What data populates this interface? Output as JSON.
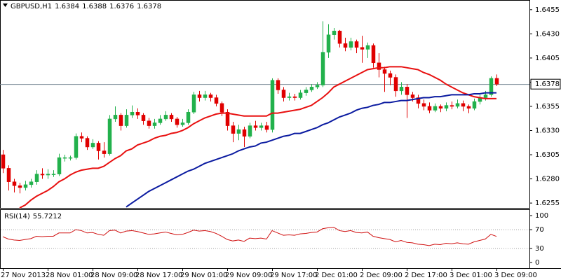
{
  "chart_data": {
    "type": "candlestick",
    "title": "GBPUSD,H1",
    "categories": [
      "27 Nov 2013",
      null,
      null,
      null,
      null,
      null,
      null,
      null,
      "28 Nov 01:00",
      null,
      null,
      null,
      null,
      null,
      null,
      null,
      "28 Nov 09:00",
      null,
      null,
      null,
      null,
      null,
      null,
      null,
      "28 Nov 17:00",
      null,
      null,
      null,
      null,
      null,
      null,
      null,
      "29 Nov 01:00",
      null,
      null,
      null,
      null,
      null,
      null,
      null,
      "29 Nov 09:00",
      null,
      null,
      null,
      null,
      null,
      null,
      null,
      "29 Nov 17:00",
      null,
      null,
      null,
      null,
      null,
      null,
      null,
      "2 Dec 01:00",
      null,
      null,
      null,
      null,
      null,
      null,
      null,
      "2 Dec 09:00",
      null,
      null,
      null,
      null,
      null,
      null,
      null,
      "2 Dec 17:00",
      null,
      null,
      null,
      null,
      null,
      null,
      null,
      "3 Dec 01:00",
      null,
      null,
      null,
      null,
      null,
      null,
      null,
      "3 Dec 09:00"
    ],
    "open": [
      1.6305,
      1.6291,
      1.6277,
      1.6273,
      1.6271,
      1.6274,
      1.6277,
      1.6285,
      1.6284,
      1.6285,
      1.6285,
      1.6302,
      1.6302,
      1.6302,
      1.6324,
      1.6322,
      1.6313,
      1.6317,
      1.6309,
      1.6306,
      1.6342,
      1.6346,
      1.6335,
      1.6346,
      1.6349,
      1.6346,
      1.634,
      1.6335,
      1.6338,
      1.6342,
      1.6346,
      1.6342,
      1.6336,
      1.6338,
      1.6349,
      1.6367,
      1.6364,
      1.6367,
      1.6364,
      1.6358,
      1.6349,
      1.6335,
      1.6327,
      1.6331,
      1.6324,
      1.6335,
      1.6333,
      1.6335,
      1.6331,
      1.6382,
      1.6372,
      1.6364,
      1.6365,
      1.6364,
      1.6369,
      1.6372,
      1.6375,
      1.6377,
      1.6411,
      1.6429,
      1.6433,
      1.642,
      1.6416,
      1.6422,
      1.6416,
      1.6414,
      1.6418,
      1.64,
      1.6393,
      1.6389,
      1.6385,
      1.6371,
      1.6375,
      1.6367,
      1.6364,
      1.6358,
      1.6355,
      1.6351,
      1.6355,
      1.6353,
      1.6356,
      1.6355,
      1.6358,
      1.6355,
      1.6353,
      1.636,
      1.6364,
      1.6367,
      1.6384
    ],
    "high": [
      1.631,
      1.6294,
      1.628,
      1.6276,
      1.6278,
      1.628,
      1.6289,
      1.6291,
      1.629,
      1.6289,
      1.6306,
      1.6305,
      1.6304,
      1.6327,
      1.6328,
      1.6324,
      1.6321,
      1.6319,
      1.6318,
      1.6346,
      1.6355,
      1.6348,
      1.6352,
      1.6356,
      1.6353,
      1.6348,
      1.6343,
      1.6342,
      1.6346,
      1.635,
      1.6348,
      1.6344,
      1.6342,
      1.6352,
      1.637,
      1.6371,
      1.6371,
      1.6369,
      1.6367,
      1.636,
      1.6352,
      1.6339,
      1.6336,
      1.6334,
      1.6338,
      1.634,
      1.6338,
      1.6339,
      1.6384,
      1.6384,
      1.6375,
      1.6369,
      1.6368,
      1.6372,
      1.6375,
      1.6378,
      1.638,
      1.6443,
      1.644,
      1.6436,
      1.6434,
      1.6426,
      1.6426,
      1.6424,
      1.6428,
      1.6421,
      1.642,
      1.641,
      1.6396,
      1.6392,
      1.6388,
      1.638,
      1.6378,
      1.637,
      1.6367,
      1.6362,
      1.6359,
      1.6358,
      1.6357,
      1.6359,
      1.636,
      1.6362,
      1.6361,
      1.6357,
      1.6363,
      1.6367,
      1.6371,
      1.6386,
      1.6388
    ],
    "low": [
      1.6286,
      1.6268,
      1.6266,
      1.6265,
      1.6268,
      1.6271,
      1.6274,
      1.628,
      1.628,
      1.6282,
      1.6283,
      1.6298,
      1.6299,
      1.63,
      1.6318,
      1.631,
      1.6311,
      1.63,
      1.6302,
      1.6304,
      1.6339,
      1.633,
      1.6333,
      1.6343,
      1.6342,
      1.6336,
      1.6332,
      1.6332,
      1.6336,
      1.634,
      1.6339,
      1.6333,
      1.6334,
      1.6336,
      1.6347,
      1.636,
      1.6361,
      1.636,
      1.6355,
      1.6345,
      1.633,
      1.6318,
      1.632,
      1.6313,
      1.6322,
      1.633,
      1.633,
      1.6328,
      1.6328,
      1.6368,
      1.636,
      1.6361,
      1.6361,
      1.6362,
      1.6366,
      1.637,
      1.6373,
      1.6375,
      1.6405,
      1.6424,
      1.6416,
      1.6412,
      1.6413,
      1.641,
      1.64,
      1.6405,
      1.6395,
      1.6385,
      1.637,
      1.6377,
      1.6365,
      1.6367,
      1.6343,
      1.636,
      1.6353,
      1.6351,
      1.6348,
      1.6349,
      1.6349,
      1.635,
      1.6352,
      1.6353,
      1.635,
      1.6348,
      1.6351,
      1.6357,
      1.6361,
      1.6365,
      1.6376
    ],
    "close": [
      1.6291,
      1.6277,
      1.6273,
      1.6271,
      1.6274,
      1.6277,
      1.6285,
      1.6284,
      1.6285,
      1.6285,
      1.6302,
      1.6302,
      1.6302,
      1.6324,
      1.6322,
      1.6313,
      1.6317,
      1.6309,
      1.6306,
      1.6342,
      1.6346,
      1.6335,
      1.6346,
      1.6349,
      1.6346,
      1.634,
      1.6335,
      1.6338,
      1.6342,
      1.6346,
      1.6342,
      1.6336,
      1.6338,
      1.6349,
      1.6367,
      1.6364,
      1.6367,
      1.6364,
      1.6358,
      1.6349,
      1.6335,
      1.6327,
      1.6331,
      1.6324,
      1.6335,
      1.6333,
      1.6335,
      1.6331,
      1.6382,
      1.6372,
      1.6364,
      1.6365,
      1.6364,
      1.6369,
      1.6372,
      1.6375,
      1.6377,
      1.6411,
      1.6429,
      1.6433,
      1.642,
      1.6416,
      1.6422,
      1.6416,
      1.6414,
      1.6418,
      1.64,
      1.6393,
      1.6389,
      1.6385,
      1.6371,
      1.6375,
      1.6367,
      1.6364,
      1.6358,
      1.6355,
      1.6351,
      1.6355,
      1.6353,
      1.6356,
      1.6355,
      1.6358,
      1.6355,
      1.6353,
      1.636,
      1.6364,
      1.6367,
      1.6384,
      1.6378
    ],
    "up_color": "#22b14c",
    "down_color": "#e00000",
    "overlays": [
      {
        "color": "#e81010",
        "values": [
          null,
          null,
          null,
          1.625,
          1.6253,
          1.6258,
          1.6262,
          1.6265,
          1.6268,
          1.6272,
          1.6277,
          1.628,
          1.6284,
          1.6287,
          1.6289,
          1.629,
          1.6291,
          1.6291,
          1.6293,
          1.6297,
          1.6301,
          1.6304,
          1.6309,
          1.6311,
          1.6315,
          1.6317,
          1.6319,
          1.6322,
          1.6324,
          1.6325,
          1.6327,
          1.6328,
          1.633,
          1.6333,
          1.6337,
          1.634,
          1.6343,
          1.6345,
          1.6347,
          1.6348,
          1.6348,
          1.6347,
          1.6346,
          1.6345,
          1.6345,
          1.6345,
          1.6345,
          1.6345,
          1.6348,
          1.6348,
          1.6349,
          1.635,
          1.6351,
          1.6352,
          1.6354,
          1.6356,
          1.636,
          1.6364,
          1.6369,
          1.6375,
          1.6378,
          1.6381,
          1.6384,
          1.6387,
          1.639,
          1.6393,
          1.6394,
          1.6395,
          1.6395,
          1.6396,
          1.6396,
          1.6396,
          1.6395,
          1.6394,
          1.6393,
          1.639,
          1.6388,
          1.6385,
          1.6382,
          1.6378,
          1.6375,
          1.6372,
          1.6369,
          1.6367,
          1.6365,
          1.6364,
          1.6363,
          1.6363,
          1.6363
        ]
      },
      {
        "color": "#0a1aa0",
        "values": [
          null,
          null,
          null,
          null,
          null,
          null,
          null,
          null,
          null,
          null,
          null,
          null,
          null,
          null,
          null,
          null,
          null,
          null,
          null,
          null,
          null,
          null,
          1.6251,
          1.6255,
          1.6259,
          1.6263,
          1.6267,
          1.627,
          1.6273,
          1.6276,
          1.6279,
          1.6282,
          1.6285,
          1.6288,
          1.629,
          1.6293,
          1.6296,
          1.6298,
          1.63,
          1.6302,
          1.6304,
          1.6306,
          1.6309,
          1.6311,
          1.6313,
          1.6314,
          1.6317,
          1.6318,
          1.632,
          1.6322,
          1.6324,
          1.6325,
          1.6327,
          1.6327,
          1.6329,
          1.6331,
          1.6333,
          1.6336,
          1.6338,
          1.6341,
          1.6344,
          1.6346,
          1.6348,
          1.6351,
          1.6353,
          1.6354,
          1.6356,
          1.6357,
          1.6359,
          1.6359,
          1.636,
          1.6361,
          1.6361,
          1.6362,
          1.6363,
          1.6364,
          1.6364,
          1.6365,
          1.6365,
          1.6366,
          1.6367,
          1.6367,
          1.6367,
          1.6367,
          1.6368,
          1.6368,
          1.6369,
          1.6369,
          1.6369
        ]
      }
    ],
    "ylim": [
      1.625,
      1.6465
    ],
    "yticks": [
      1.6455,
      {
        "value": 1.643,
        "label": "1.6430"
      },
      1.6405,
      {
        "value": 1.638,
        "label": "1.6380"
      },
      1.6355,
      {
        "value": 1.633,
        "label": "1.6330"
      },
      1.6305,
      {
        "value": 1.628,
        "label": "1.6280"
      },
      1.6255
    ],
    "indicator": {
      "title": "RSI(14)",
      "color": "#d01010",
      "values": [
        55,
        50,
        48,
        47,
        49,
        51,
        56,
        55,
        56,
        56,
        63,
        63,
        63,
        70,
        68,
        63,
        64,
        60,
        58,
        68,
        69,
        63,
        67,
        68,
        66,
        63,
        60,
        61,
        63,
        65,
        62,
        59,
        60,
        64,
        69,
        67,
        68,
        66,
        62,
        56,
        49,
        46,
        48,
        45,
        52,
        51,
        52,
        50,
        68,
        63,
        58,
        59,
        58,
        61,
        62,
        64,
        65,
        72,
        74,
        75,
        68,
        66,
        68,
        64,
        63,
        65,
        56,
        53,
        51,
        49,
        44,
        47,
        43,
        42,
        39,
        38,
        36,
        39,
        38,
        41,
        40,
        42,
        40,
        39,
        44,
        47,
        50,
        60,
        55.7212
      ],
      "ylim": [
        0,
        100
      ],
      "yticks": [
        100,
        70,
        30,
        0
      ],
      "levels": [
        70,
        30
      ]
    }
  }
}
